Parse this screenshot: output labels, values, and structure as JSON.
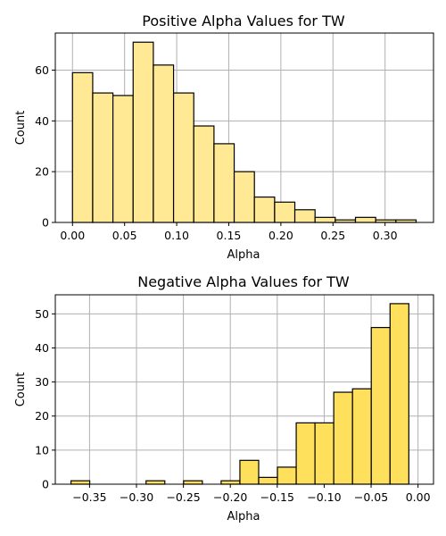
{
  "chart_data": [
    {
      "type": "bar",
      "title": "Positive Alpha Values for TW",
      "xlabel": "Alpha",
      "ylabel": "Count",
      "color": "#ffe994",
      "grid": true,
      "xlim": [
        -0.0165,
        0.3465
      ],
      "ylim": [
        0,
        74.6
      ],
      "xticks": [
        0.0,
        0.05,
        0.1,
        0.15,
        0.2,
        0.25,
        0.3
      ],
      "xtick_labels": [
        "0.00",
        "0.05",
        "0.10",
        "0.15",
        "0.20",
        "0.25",
        "0.30"
      ],
      "yticks": [
        0,
        20,
        40,
        60
      ],
      "ytick_labels": [
        "0",
        "20",
        "40",
        "60"
      ],
      "bins": [
        {
          "x0": 0.0,
          "x1": 0.0194,
          "count": 59
        },
        {
          "x0": 0.0194,
          "x1": 0.0388,
          "count": 51
        },
        {
          "x0": 0.0388,
          "x1": 0.0582,
          "count": 50
        },
        {
          "x0": 0.0582,
          "x1": 0.0776,
          "count": 71
        },
        {
          "x0": 0.0776,
          "x1": 0.097,
          "count": 62
        },
        {
          "x0": 0.097,
          "x1": 0.1164,
          "count": 51
        },
        {
          "x0": 0.1164,
          "x1": 0.1358,
          "count": 38
        },
        {
          "x0": 0.1358,
          "x1": 0.1552,
          "count": 31
        },
        {
          "x0": 0.1552,
          "x1": 0.1746,
          "count": 20
        },
        {
          "x0": 0.1746,
          "x1": 0.194,
          "count": 10
        },
        {
          "x0": 0.194,
          "x1": 0.2134,
          "count": 8
        },
        {
          "x0": 0.2134,
          "x1": 0.2328,
          "count": 5
        },
        {
          "x0": 0.2328,
          "x1": 0.2522,
          "count": 2
        },
        {
          "x0": 0.2522,
          "x1": 0.2716,
          "count": 1
        },
        {
          "x0": 0.2716,
          "x1": 0.291,
          "count": 2
        },
        {
          "x0": 0.291,
          "x1": 0.3104,
          "count": 1
        },
        {
          "x0": 0.3104,
          "x1": 0.3298,
          "count": 1
        }
      ]
    },
    {
      "type": "bar",
      "title": "Negative Alpha Values for TW",
      "xlabel": "Alpha",
      "ylabel": "Count",
      "color": "#ffe05c",
      "grid": true,
      "xlim": [
        -0.3865,
        0.0165
      ],
      "ylim": [
        0,
        55.6
      ],
      "xticks": [
        -0.35,
        -0.3,
        -0.25,
        -0.2,
        -0.15,
        -0.1,
        -0.05,
        0.0
      ],
      "xtick_labels": [
        "−0.35",
        "−0.30",
        "−0.25",
        "−0.20",
        "−0.15",
        "−0.10",
        "−0.05",
        "0.00"
      ],
      "yticks": [
        0,
        10,
        20,
        30,
        40,
        50
      ],
      "ytick_labels": [
        "0",
        "10",
        "20",
        "30",
        "40",
        "50"
      ],
      "bins": [
        {
          "x0": -0.3698,
          "x1": -0.3498,
          "count": 1
        },
        {
          "x0": -0.3498,
          "x1": -0.3298,
          "count": 0
        },
        {
          "x0": -0.3298,
          "x1": -0.3098,
          "count": 0
        },
        {
          "x0": -0.3098,
          "x1": -0.2898,
          "count": 0
        },
        {
          "x0": -0.2898,
          "x1": -0.2698,
          "count": 1
        },
        {
          "x0": -0.2698,
          "x1": -0.2498,
          "count": 0
        },
        {
          "x0": -0.2498,
          "x1": -0.2298,
          "count": 1
        },
        {
          "x0": -0.2298,
          "x1": -0.2098,
          "count": 0
        },
        {
          "x0": -0.2098,
          "x1": -0.1898,
          "count": 1
        },
        {
          "x0": -0.1898,
          "x1": -0.1698,
          "count": 7
        },
        {
          "x0": -0.1698,
          "x1": -0.1498,
          "count": 2
        },
        {
          "x0": -0.1498,
          "x1": -0.1298,
          "count": 5
        },
        {
          "x0": -0.1298,
          "x1": -0.1098,
          "count": 18
        },
        {
          "x0": -0.1098,
          "x1": -0.0898,
          "count": 18
        },
        {
          "x0": -0.0898,
          "x1": -0.0698,
          "count": 27
        },
        {
          "x0": -0.0698,
          "x1": -0.0498,
          "count": 28
        },
        {
          "x0": -0.0498,
          "x1": -0.0298,
          "count": 46
        },
        {
          "x0": -0.0298,
          "x1": -0.0098,
          "count": 53
        }
      ]
    }
  ]
}
